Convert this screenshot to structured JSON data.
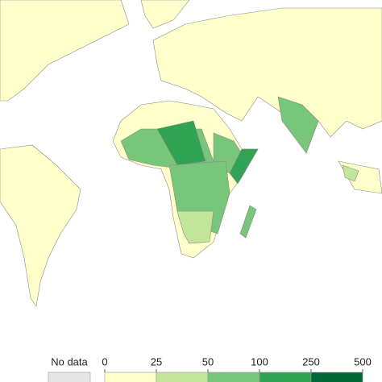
{
  "legend": {
    "no_data_label": "No data",
    "no_data_color": "#e6e6e6",
    "ticks": [
      0,
      25,
      50,
      100,
      250,
      500
    ],
    "colors": [
      "#ffffcc",
      "#c2e699",
      "#78c679",
      "#31a354",
      "#006837"
    ]
  }
}
